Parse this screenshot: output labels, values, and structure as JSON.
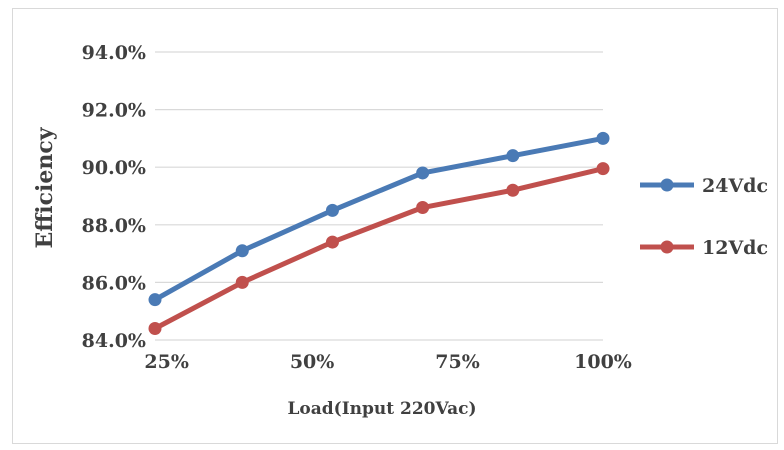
{
  "chart_data": {
    "type": "line",
    "title": "",
    "xlabel": "Load(Input 220Vac)",
    "ylabel": "Efficiency",
    "x": [
      0.23,
      0.38,
      0.535,
      0.69,
      0.845,
      1.0
    ],
    "x_tick_values": [
      0.25,
      0.5,
      0.75,
      1.0
    ],
    "x_tick_labels": [
      "25%",
      "50%",
      "75%",
      "100%"
    ],
    "xlim": [
      0.23,
      1.0
    ],
    "y_tick_values": [
      84.0,
      86.0,
      88.0,
      90.0,
      92.0,
      94.0
    ],
    "y_tick_labels": [
      "84.0%",
      "86.0%",
      "88.0%",
      "90.0%",
      "92.0%",
      "94.0%"
    ],
    "ylim": [
      84.0,
      94.0
    ],
    "grid": "horizontal",
    "legend": "right",
    "series": [
      {
        "name": "24Vdc",
        "color": "#4a7ab5",
        "values": [
          85.4,
          87.1,
          88.5,
          89.8,
          90.4,
          91.0
        ]
      },
      {
        "name": "12Vdc",
        "color": "#c0504d",
        "values": [
          84.4,
          86.0,
          87.4,
          88.6,
          89.2,
          89.95
        ]
      }
    ]
  }
}
